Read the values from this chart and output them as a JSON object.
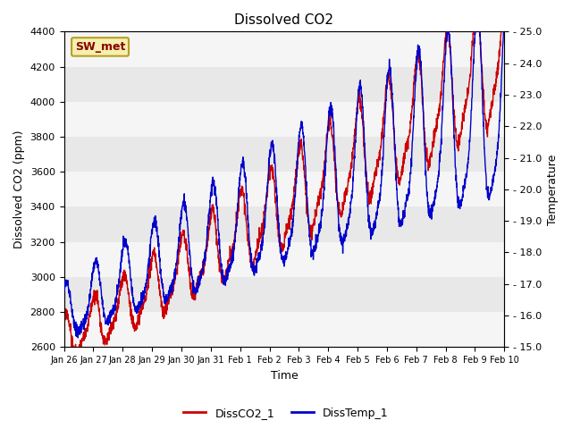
{
  "title": "Dissolved CO2",
  "xlabel": "Time",
  "ylabel_left": "Dissolved CO2 (ppm)",
  "ylabel_right": "Temperature",
  "co2_ylim": [
    2600,
    4400
  ],
  "temp_ylim": [
    15.0,
    25.0
  ],
  "co2_yticks": [
    2600,
    2800,
    3000,
    3200,
    3400,
    3600,
    3800,
    4000,
    4200,
    4400
  ],
  "temp_yticks": [
    15.0,
    16.0,
    17.0,
    18.0,
    19.0,
    20.0,
    21.0,
    22.0,
    23.0,
    24.0,
    25.0
  ],
  "xtick_labels": [
    "Jan 26",
    "Jan 27",
    "Jan 28",
    "Jan 29",
    "Jan 30",
    "Jan 31",
    "Feb 1",
    "Feb 2",
    "Feb 3",
    "Feb 4",
    "Feb 5",
    "Feb 6",
    "Feb 7",
    "Feb 8",
    "Feb 9",
    "Feb 10"
  ],
  "co2_color": "#cc0000",
  "temp_color": "#0000cc",
  "legend_co2": "DissCO2_1",
  "legend_temp": "DissTemp_1",
  "station_label": "SW_met",
  "band_color_dark": "#e8e8e8",
  "band_color_light": "#f5f5f5",
  "title_fontsize": 11,
  "label_fontsize": 9,
  "tick_fontsize": 8
}
